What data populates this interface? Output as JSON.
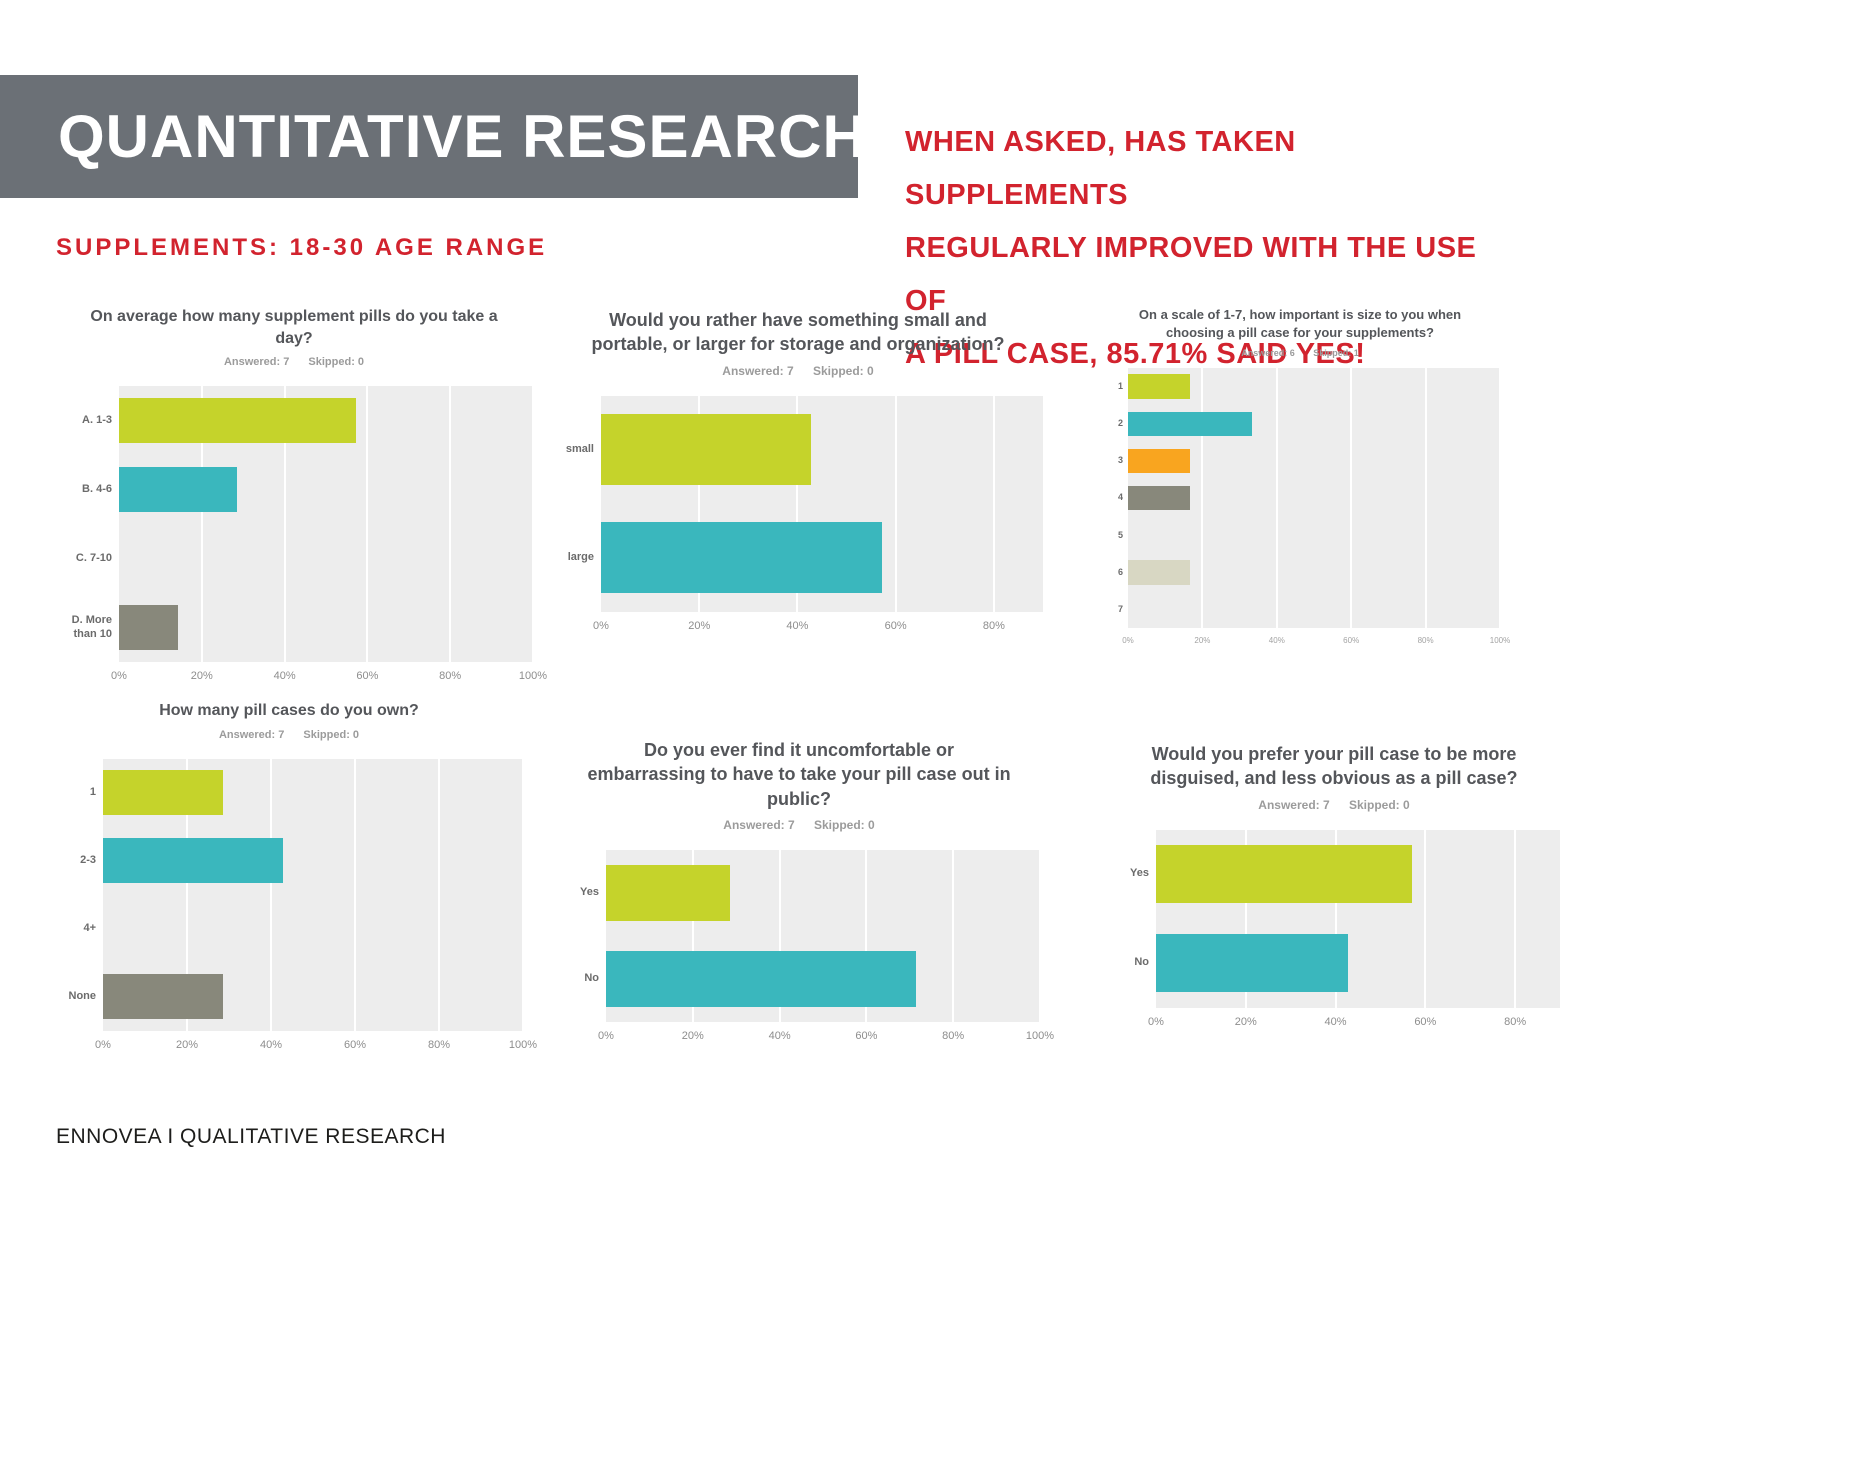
{
  "header": {
    "banner_title": "QUANTITATIVE RESEARCH",
    "subtitle": "SUPPLEMENTS: 18-30 AGE RANGE",
    "callout_lines": [
      "WHEN ASKED, HAS TAKEN SUPPLEMENTS",
      "REGULARLY IMPROVED WITH THE USE OF",
      "A PILL CASE, 85.71% SAID YES!"
    ]
  },
  "footer": {
    "text": "ENNOVEA I QUALITATIVE RESEARCH"
  },
  "colors": {
    "banner_gray": "#6b7076",
    "accent_red": "#d2232e",
    "plot_bg": "#ededed",
    "green": "#c5d32b",
    "teal": "#3ab7bd",
    "orange": "#f9a51f",
    "gray": "#88887b",
    "lavender": "#b7b6c9",
    "beige": "#d8d7c3",
    "blue": "#7a99ac"
  },
  "chart_data": [
    {
      "type": "bar",
      "orientation": "horizontal",
      "title": "On average how many supplement pills do you take a day?",
      "answered": "Answered: 7",
      "skipped": "Skipped: 0",
      "categories": [
        "A. 1-3",
        "B. 4-6",
        "C. 7-10",
        "D. More than 10"
      ],
      "values": [
        57.14,
        28.57,
        0,
        14.29
      ],
      "unit": "%",
      "bar_colors": [
        "green",
        "teal",
        "orange",
        "gray"
      ],
      "xmax": 100,
      "x_ticks": [
        0,
        20,
        40,
        60,
        80,
        100
      ],
      "x_tick_labels": [
        "0%",
        "20%",
        "40%",
        "60%",
        "80%",
        "100%"
      ],
      "grid": true,
      "legend": "none"
    },
    {
      "type": "bar",
      "orientation": "horizontal",
      "title": "Would you rather have something small and portable, or larger for storage and organization?",
      "answered": "Answered: 7",
      "skipped": "Skipped: 0",
      "categories": [
        "small",
        "large"
      ],
      "values": [
        42.86,
        57.14
      ],
      "unit": "%",
      "bar_colors": [
        "green",
        "teal"
      ],
      "xmax": 90,
      "x_ticks": [
        0,
        20,
        40,
        60,
        80
      ],
      "x_tick_labels": [
        "0%",
        "20%",
        "40%",
        "60%",
        "80%"
      ],
      "grid": true,
      "legend": "none"
    },
    {
      "type": "bar",
      "orientation": "horizontal",
      "title": "On a scale of 1-7, how important is size to you when choosing a pill case for your supplements?",
      "answered": "Answered: 6",
      "skipped": "Skipped: 1",
      "categories": [
        "1",
        "2",
        "3",
        "4",
        "5",
        "6",
        "7"
      ],
      "values": [
        16.67,
        33.33,
        16.67,
        16.67,
        0,
        16.67,
        0
      ],
      "unit": "%",
      "bar_colors": [
        "green",
        "teal",
        "orange",
        "gray",
        "lavender",
        "beige",
        "blue"
      ],
      "xmax": 100,
      "x_ticks": [
        0,
        20,
        40,
        60,
        80,
        100
      ],
      "x_tick_labels": [
        "0%",
        "20%",
        "40%",
        "60%",
        "80%",
        "100%"
      ],
      "grid": true,
      "legend": "none"
    },
    {
      "type": "bar",
      "orientation": "horizontal",
      "title": "How many pill cases do you own?",
      "answered": "Answered: 7",
      "skipped": "Skipped: 0",
      "categories": [
        "1",
        "2-3",
        "4+",
        "None"
      ],
      "values": [
        28.57,
        42.86,
        0,
        28.57
      ],
      "unit": "%",
      "bar_colors": [
        "green",
        "teal",
        "orange",
        "gray"
      ],
      "xmax": 100,
      "x_ticks": [
        0,
        20,
        40,
        60,
        80,
        100
      ],
      "x_tick_labels": [
        "0%",
        "20%",
        "40%",
        "60%",
        "80%",
        "100%"
      ],
      "grid": true,
      "legend": "none"
    },
    {
      "type": "bar",
      "orientation": "horizontal",
      "title": "Do you ever find it uncomfortable or embarrassing to have to take your pill case out in public?",
      "answered": "Answered: 7",
      "skipped": "Skipped: 0",
      "categories": [
        "Yes",
        "No"
      ],
      "values": [
        28.57,
        71.43
      ],
      "unit": "%",
      "bar_colors": [
        "green",
        "teal"
      ],
      "xmax": 100,
      "x_ticks": [
        0,
        20,
        40,
        60,
        80,
        100
      ],
      "x_tick_labels": [
        "0%",
        "20%",
        "40%",
        "60%",
        "80%",
        "100%"
      ],
      "grid": true,
      "legend": "none"
    },
    {
      "type": "bar",
      "orientation": "horizontal",
      "title": "Would you prefer your pill case to be more disguised, and less obvious as a pill case?",
      "answered": "Answered: 7",
      "skipped": "Skipped: 0",
      "categories": [
        "Yes",
        "No"
      ],
      "values": [
        57.14,
        42.86
      ],
      "unit": "%",
      "bar_colors": [
        "green",
        "teal"
      ],
      "xmax": 90,
      "x_ticks": [
        0,
        20,
        40,
        60,
        80
      ],
      "x_tick_labels": [
        "0%",
        "20%",
        "40%",
        "60%",
        "80%"
      ],
      "grid": true,
      "legend": "none"
    }
  ]
}
